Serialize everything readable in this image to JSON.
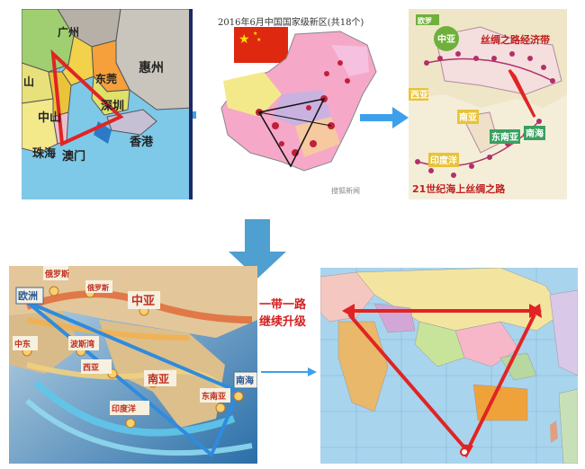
{
  "top_row": {
    "pearl_delta_map": {
      "labels": [
        "广州",
        "东莞",
        "惠州",
        "中山",
        "深圳",
        "珠海",
        "澳门",
        "香港",
        "山"
      ]
    },
    "china_map": {
      "title": "2016年6月中国国家级新区(共18个)",
      "watermark": "搜狐新闻"
    },
    "silk_road_map": {
      "top_label": "丝绸之路经济带",
      "bottom_label": "21世纪海上丝绸之路",
      "region_labels": [
        "中亚",
        "欧罗",
        "西亚",
        "南亚",
        "东南亚",
        "南海",
        "印度洋"
      ]
    }
  },
  "bottom_row": {
    "route_map": {
      "labels": [
        "欧洲",
        "俄罗斯",
        "中亚",
        "中东",
        "波斯湾",
        "西亚",
        "南亚",
        "东南亚",
        "印度洋",
        "南海"
      ]
    },
    "world_map": {}
  },
  "caption": {
    "line1": "一带一路",
    "line2": "继续升级"
  },
  "colors": {
    "arrow_blue": "#3ea0ea",
    "triangle_red": "#e02424",
    "caption_red": "#d42020",
    "route_blue": "#2f8bde"
  }
}
